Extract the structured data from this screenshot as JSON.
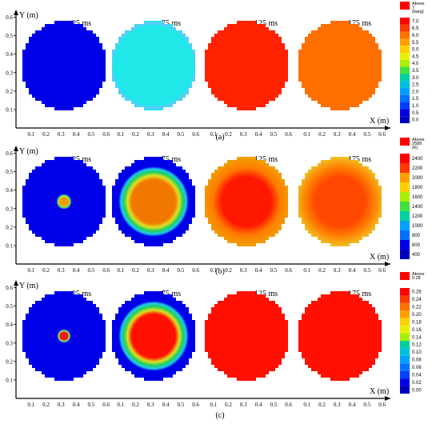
{
  "panels": [
    {
      "label": "(a)",
      "axes": {
        "y_label": "Y (m)",
        "x_label": "X (m)"
      },
      "x_ticks": [
        "0.1",
        "0.2",
        "0.3",
        "0.4",
        "0.5",
        "0.6"
      ],
      "y_ticks": [
        "0.1",
        "0.2",
        "0.3",
        "0.4",
        "0.5",
        "0.6"
      ],
      "times": [
        "25 ms",
        "75 ms",
        "125 ms",
        "175 ms"
      ],
      "legend": {
        "above_label": "Above",
        "above_value": "7",
        "unit": "(barg)",
        "above_color": "#ff0000",
        "levels": [
          "7.0",
          "6.5",
          "6.0",
          "5.5",
          "5.0",
          "4.5",
          "4.0",
          "3.5",
          "3.0",
          "2.5",
          "2.0",
          "1.5",
          "1.0",
          "0.5",
          "0.0"
        ]
      },
      "cells": [
        {
          "time": "25 ms",
          "mode": "uniform",
          "color": "#0000e8"
        },
        {
          "time": "75 ms",
          "mode": "uniform",
          "color": "#20e8e8",
          "ring": "#60c8ff"
        },
        {
          "time": "125 ms",
          "mode": "uniform",
          "color": "#ff2200",
          "corner": "#30d060"
        },
        {
          "time": "175 ms",
          "mode": "uniform",
          "color": "#ff7000",
          "corner": "#30d060"
        }
      ]
    },
    {
      "label": "(b)",
      "axes": {
        "y_label": "Y (m)",
        "x_label": "X (m)"
      },
      "x_ticks": [
        "0.1",
        "0.2",
        "0.3",
        "0.4",
        "0.5",
        "0.6"
      ],
      "y_ticks": [
        "0.1",
        "0.2",
        "0.3",
        "0.4",
        "0.5",
        "0.6"
      ],
      "times": [
        "25 ms",
        "75 ms",
        "125 ms",
        "175 ms"
      ],
      "legend": {
        "above_label": "Above",
        "above_value": "2589",
        "unit": "(K)",
        "above_color": "#ff0000",
        "levels": [
          "2400",
          "2200",
          "2000",
          "1800",
          "1600",
          "1400",
          "1200",
          "1000",
          "800",
          "600",
          "400"
        ]
      },
      "cells": [
        {
          "time": "25 ms",
          "mode": "spot",
          "bg": "#0000e8",
          "spot_r": 0.042,
          "core": "#f0a000"
        },
        {
          "time": "75 ms",
          "mode": "spot",
          "bg": "#0000e8",
          "spot_r": 0.2,
          "core": "#f07800"
        },
        {
          "time": "125 ms",
          "mode": "hot",
          "core": "#ff1800",
          "edge": "#f0a000",
          "corner": "#30d060"
        },
        {
          "time": "175 ms",
          "mode": "hot",
          "core": "#ff4800",
          "edge": "#f0c020",
          "corner": "#30d060"
        }
      ]
    },
    {
      "label": "(c)",
      "axes": {
        "y_label": "Y (m)",
        "x_label": "X (m)"
      },
      "x_ticks": [
        "0.1",
        "0.2",
        "0.3",
        "0.4",
        "0.5",
        "0.6"
      ],
      "y_ticks": [
        "0.1",
        "0.2",
        "0.3",
        "0.4",
        "0.5",
        "0.6"
      ],
      "times": [
        "25 ms",
        "75 ms",
        "125 ms",
        "175 ms"
      ],
      "legend": {
        "above_label": "Above",
        "above_value": "0.28",
        "unit": "",
        "above_color": "#ff0000",
        "levels": [
          "0.26",
          "0.24",
          "0.22",
          "0.20",
          "0.18",
          "0.16",
          "0.14",
          "0.12",
          "0.10",
          "0.08",
          "0.06",
          "0.04",
          "0.02",
          "0.00"
        ]
      },
      "cells": [
        {
          "time": "25 ms",
          "mode": "spot",
          "bg": "#0000e8",
          "spot_r": 0.038,
          "core": "#ff1000"
        },
        {
          "time": "75 ms",
          "mode": "spot",
          "bg": "#0000e8",
          "spot_r": 0.2,
          "core": "#ff1000"
        },
        {
          "time": "125 ms",
          "mode": "uniform",
          "color": "#ff1000",
          "corner": "#30d060"
        },
        {
          "time": "175 ms",
          "mode": "uniform",
          "color": "#ff1000",
          "corner": "#30d060"
        }
      ]
    }
  ],
  "chart_data": [
    {
      "type": "heatmap",
      "title": "",
      "xlabel": "X (m)",
      "ylabel": "Y (m)",
      "xlim": [
        0,
        0.65
      ],
      "ylim": [
        0,
        0.65
      ],
      "colorbar": {
        "max_label": "Above 7",
        "unit": "(barg)",
        "min": 0.0,
        "max": 7.0
      },
      "frames": [
        {
          "time": "25 ms",
          "value_approx": 0.0
        },
        {
          "time": "75 ms",
          "value_approx": 2.3
        },
        {
          "time": "125 ms",
          "value_approx": 6.9
        },
        {
          "time": "175 ms",
          "value_approx": 5.8
        }
      ]
    },
    {
      "type": "heatmap",
      "xlabel": "X (m)",
      "ylabel": "Y (m)",
      "xlim": [
        0,
        0.65
      ],
      "ylim": [
        0,
        0.65
      ],
      "colorbar": {
        "max_label": "Above 2589",
        "unit": "(K)",
        "min": 400,
        "max": 2400
      },
      "frames": [
        {
          "time": "25 ms",
          "background": 400,
          "center_approx": 2000
        },
        {
          "time": "75 ms",
          "background": 400,
          "center_approx": 2100
        },
        {
          "time": "125 ms",
          "center_approx": 2400,
          "edge_approx": 2000
        },
        {
          "time": "175 ms",
          "center_approx": 2300,
          "edge_approx": 1900
        }
      ]
    },
    {
      "type": "heatmap",
      "xlabel": "X (m)",
      "ylabel": "Y (m)",
      "xlim": [
        0,
        0.65
      ],
      "ylim": [
        0,
        0.65
      ],
      "colorbar": {
        "max_label": "Above 0.28",
        "unit": "",
        "min": 0.0,
        "max": 0.26
      },
      "frames": [
        {
          "time": "25 ms",
          "background": 0.0,
          "center_approx": 0.26
        },
        {
          "time": "75 ms",
          "background": 0.0,
          "center_approx": 0.26
        },
        {
          "time": "125 ms",
          "value_approx": 0.26
        },
        {
          "time": "175 ms",
          "value_approx": 0.26
        }
      ]
    }
  ]
}
